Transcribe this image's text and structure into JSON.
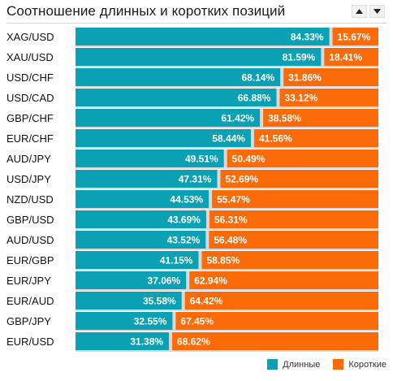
{
  "header": {
    "title": "Соотношение длинных и коротких позиций",
    "sort_up_icon": "triangle-up-icon",
    "sort_down_icon": "triangle-down-icon"
  },
  "colors": {
    "long": "#0aa1b5",
    "short": "#fb6b0a",
    "row_background": "#d9d9d9",
    "label_text": "#ffffff"
  },
  "chart_data": {
    "type": "bar",
    "orientation": "horizontal",
    "stacked": true,
    "title": "Соотношение длинных и коротких позиций",
    "categories": [
      "XAG/USD",
      "XAU/USD",
      "USD/CHF",
      "USD/CAD",
      "GBP/CHF",
      "EUR/CHF",
      "AUD/JPY",
      "USD/JPY",
      "NZD/USD",
      "GBP/USD",
      "AUD/USD",
      "EUR/GBP",
      "EUR/JPY",
      "EUR/AUD",
      "GBP/JPY",
      "EUR/USD"
    ],
    "series": [
      {
        "name": "Длинные",
        "values": [
          84.33,
          81.59,
          68.14,
          66.88,
          61.42,
          58.44,
          49.51,
          47.31,
          44.53,
          43.69,
          43.52,
          41.15,
          37.06,
          35.58,
          32.55,
          31.38
        ]
      },
      {
        "name": "Короткие",
        "values": [
          15.67,
          18.41,
          31.86,
          33.12,
          38.58,
          41.56,
          50.49,
          52.69,
          55.47,
          56.31,
          56.48,
          58.85,
          62.94,
          64.42,
          67.45,
          68.62
        ]
      }
    ],
    "value_labels_long": [
      "84.33%",
      "81.59%",
      "68.14%",
      "66.88%",
      "61.42%",
      "58.44%",
      "49.51%",
      "47.31%",
      "44.53%",
      "43.69%",
      "43.52%",
      "41.15%",
      "37.06%",
      "35.58%",
      "32.55%",
      "31.38%"
    ],
    "value_labels_short": [
      "15.67%",
      "18.41%",
      "31.86%",
      "33.12%",
      "38.58%",
      "41.56%",
      "50.49%",
      "52.69%",
      "55.47%",
      "56.31%",
      "56.48%",
      "58.85%",
      "62.94%",
      "64.42%",
      "67.45%",
      "68.62%"
    ],
    "xlim": [
      0,
      100
    ],
    "grid": false,
    "legend_position": "bottom-right"
  },
  "legend": {
    "long_label": "Длинные",
    "short_label": "Короткие"
  }
}
